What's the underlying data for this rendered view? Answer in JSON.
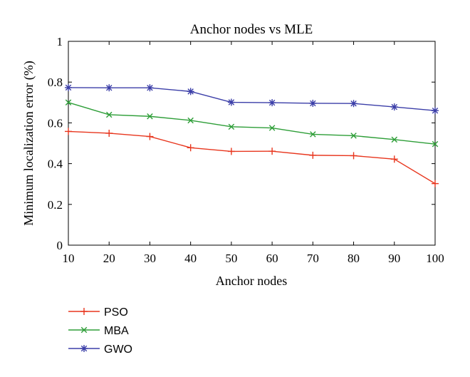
{
  "chart_data": {
    "type": "line",
    "title": "Anchor nodes vs MLE",
    "xlabel": "Anchor nodes",
    "ylabel": "Minimum localization error (%)",
    "x": [
      10,
      20,
      30,
      40,
      50,
      60,
      70,
      80,
      90,
      100
    ],
    "xlim": [
      10,
      100
    ],
    "ylim": [
      0,
      1
    ],
    "xticks": [
      10,
      20,
      30,
      40,
      50,
      60,
      70,
      80,
      90,
      100
    ],
    "yticks": [
      0,
      0.2,
      0.4,
      0.6,
      0.8,
      1
    ],
    "grid": false,
    "legend_position": "bottom-left",
    "series": [
      {
        "name": "PSO",
        "color": "#e8361e",
        "marker": "plus",
        "values": [
          0.558,
          0.549,
          0.533,
          0.478,
          0.46,
          0.461,
          0.441,
          0.439,
          0.422,
          0.302
        ]
      },
      {
        "name": "MBA",
        "color": "#2e9e38",
        "marker": "x",
        "values": [
          0.7,
          0.64,
          0.632,
          0.612,
          0.581,
          0.575,
          0.544,
          0.537,
          0.518,
          0.496
        ]
      },
      {
        "name": "GWO",
        "color": "#3b3ea8",
        "marker": "star",
        "values": [
          0.773,
          0.772,
          0.772,
          0.754,
          0.701,
          0.699,
          0.696,
          0.695,
          0.678,
          0.66
        ]
      }
    ]
  }
}
